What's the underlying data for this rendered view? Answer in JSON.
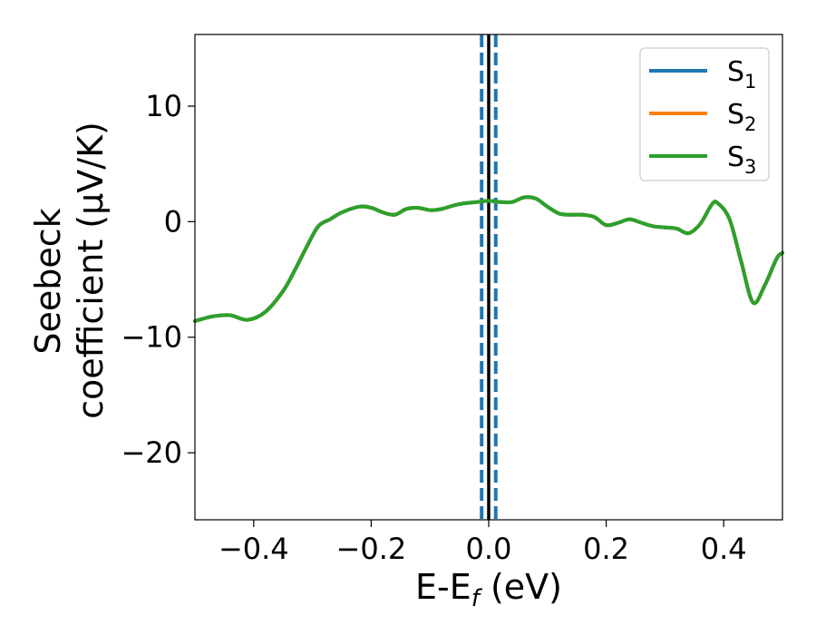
{
  "chart_data": {
    "type": "line",
    "title": "",
    "xlabel": {
      "main": "E-E",
      "sub": "f",
      "unit": " (eV)"
    },
    "ylabel": {
      "line1": "Seebeck",
      "line2": "coefficient  (μV/K)"
    },
    "xlim": [
      -0.5,
      0.5
    ],
    "ylim": [
      -25.8,
      16.2
    ],
    "xticks": [
      -0.4,
      -0.2,
      0.0,
      0.2,
      0.4
    ],
    "xtick_labels": [
      "−0.4",
      "−0.2",
      "0.0",
      "0.2",
      "0.4"
    ],
    "yticks": [
      -20,
      -10,
      0,
      10
    ],
    "ytick_labels": [
      "−20",
      "−10",
      "0",
      "10"
    ],
    "grid": false,
    "legend_position": "top-right",
    "x": [
      -0.5,
      -0.47,
      -0.44,
      -0.41,
      -0.38,
      -0.35,
      -0.33,
      -0.31,
      -0.29,
      -0.27,
      -0.25,
      -0.22,
      -0.2,
      -0.18,
      -0.16,
      -0.14,
      -0.12,
      -0.1,
      -0.08,
      -0.06,
      -0.04,
      -0.02,
      0.0,
      0.02,
      0.04,
      0.06,
      0.08,
      0.1,
      0.12,
      0.14,
      0.16,
      0.18,
      0.2,
      0.22,
      0.24,
      0.26,
      0.28,
      0.3,
      0.32,
      0.34,
      0.36,
      0.38,
      0.39,
      0.41,
      0.43,
      0.45,
      0.47,
      0.49,
      0.5
    ],
    "series": [
      {
        "name_main": "S",
        "name_sub": "1",
        "color": "#1f77b4",
        "values": [
          -8.6,
          -8.2,
          -8.1,
          -8.5,
          -7.8,
          -6.0,
          -4.2,
          -2.2,
          -0.4,
          0.2,
          0.8,
          1.3,
          1.2,
          0.8,
          0.6,
          1.1,
          1.2,
          1.0,
          1.1,
          1.4,
          1.6,
          1.7,
          1.8,
          1.7,
          1.7,
          2.1,
          2.0,
          1.3,
          0.7,
          0.6,
          0.6,
          0.4,
          -0.3,
          -0.1,
          0.2,
          -0.1,
          -0.4,
          -0.5,
          -0.6,
          -1.0,
          -0.2,
          1.5,
          1.6,
          0.2,
          -3.5,
          -7.0,
          -5.5,
          -3.2,
          -2.7
        ]
      },
      {
        "name_main": "S",
        "name_sub": "2",
        "color": "#ff7f0e",
        "values": [
          -8.6,
          -8.2,
          -8.1,
          -8.5,
          -7.8,
          -6.0,
          -4.2,
          -2.2,
          -0.4,
          0.2,
          0.8,
          1.3,
          1.2,
          0.8,
          0.6,
          1.1,
          1.2,
          1.0,
          1.1,
          1.4,
          1.6,
          1.7,
          1.8,
          1.7,
          1.7,
          2.1,
          2.0,
          1.3,
          0.7,
          0.6,
          0.6,
          0.4,
          -0.3,
          -0.1,
          0.2,
          -0.1,
          -0.4,
          -0.5,
          -0.6,
          -1.0,
          -0.2,
          1.5,
          1.6,
          0.2,
          -3.5,
          -7.0,
          -5.5,
          -3.2,
          -2.7
        ]
      },
      {
        "name_main": "S",
        "name_sub": "3",
        "color": "#2ca02c",
        "values": [
          -8.6,
          -8.2,
          -8.1,
          -8.5,
          -7.8,
          -6.0,
          -4.2,
          -2.2,
          -0.4,
          0.2,
          0.8,
          1.3,
          1.2,
          0.8,
          0.6,
          1.1,
          1.2,
          1.0,
          1.1,
          1.4,
          1.6,
          1.7,
          1.8,
          1.7,
          1.7,
          2.1,
          2.0,
          1.3,
          0.7,
          0.6,
          0.6,
          0.4,
          -0.3,
          -0.1,
          0.2,
          -0.1,
          -0.4,
          -0.5,
          -0.6,
          -1.0,
          -0.2,
          1.5,
          1.6,
          0.2,
          -3.5,
          -7.0,
          -5.5,
          -3.2,
          -2.7
        ]
      }
    ],
    "vlines": [
      {
        "x": 0.0,
        "color": "#000000",
        "style": "solid"
      },
      {
        "x": -0.012,
        "color": "#1f77b4",
        "style": "dashed"
      },
      {
        "x": 0.012,
        "color": "#1f77b4",
        "style": "dashed"
      }
    ]
  }
}
